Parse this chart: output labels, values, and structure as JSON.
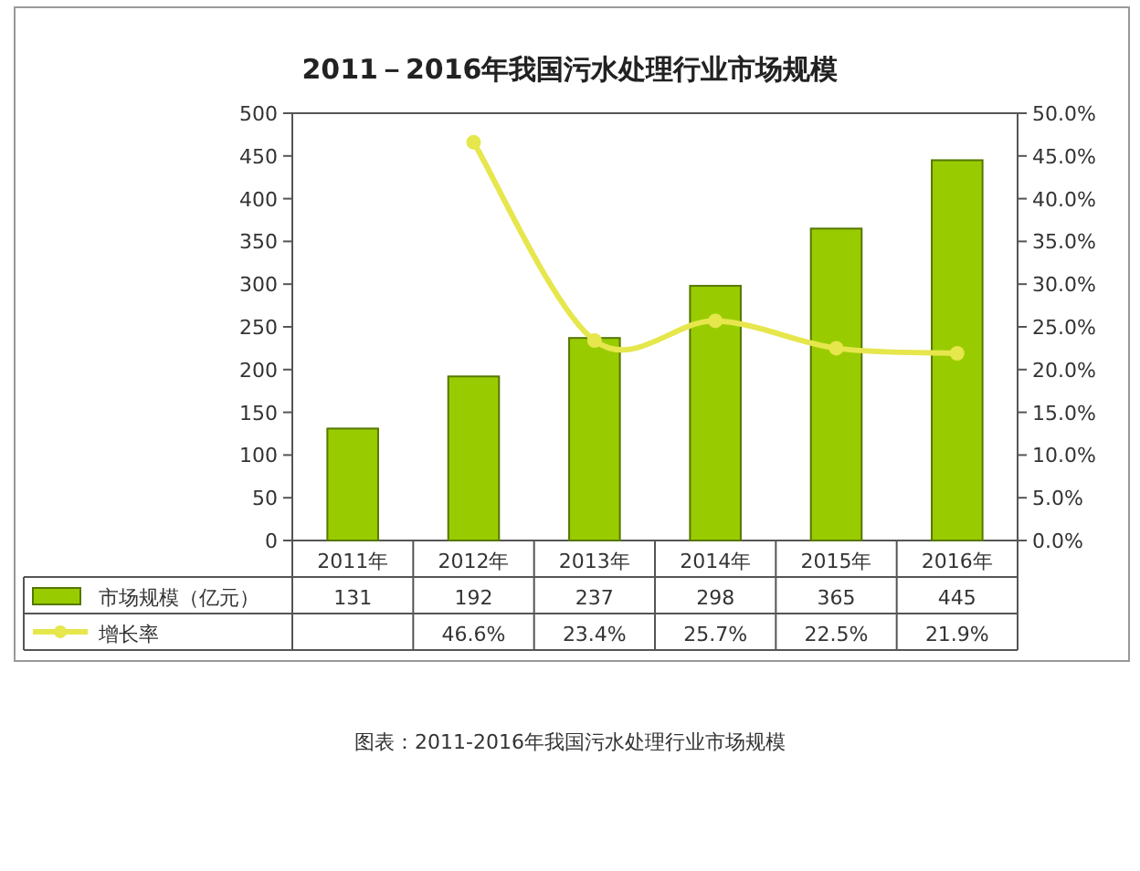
{
  "chart_data": {
    "type": "bar",
    "title": "2011－2016年我国污水处理行业市场规模",
    "categories": [
      "2011年",
      "2012年",
      "2013年",
      "2014年",
      "2015年",
      "2016年"
    ],
    "series": [
      {
        "name": "市场规模（亿元）",
        "color": "#99cc00",
        "values": [
          131,
          192,
          237,
          298,
          365,
          445
        ],
        "value_labels": [
          "131",
          "192",
          "237",
          "298",
          "365",
          "445"
        ]
      },
      {
        "name": "增长率",
        "type": "line",
        "axis": "y2",
        "color": "#e6e64d",
        "marker": "circle",
        "values": [
          null,
          46.6,
          23.4,
          25.7,
          22.5,
          21.9
        ],
        "value_labels": [
          null,
          "46.6%",
          "23.4%",
          "25.7%",
          "22.5%",
          "21.9%"
        ]
      }
    ],
    "ylim": [
      0,
      500
    ],
    "yticks": [
      0,
      50,
      100,
      150,
      200,
      250,
      300,
      350,
      400,
      450,
      500
    ],
    "y2lim": [
      0,
      50
    ],
    "y2ticks": [
      {
        "value": 0,
        "label": "0.0%"
      },
      {
        "value": 5,
        "label": "5.0%"
      },
      {
        "value": 10,
        "label": "10.0%"
      },
      {
        "value": 15,
        "label": "15.0%"
      },
      {
        "value": 20,
        "label": "20.0%"
      },
      {
        "value": 25,
        "label": "25.0%"
      },
      {
        "value": 30,
        "label": "30.0%"
      },
      {
        "value": 35,
        "label": "35.0%"
      },
      {
        "value": 40,
        "label": "40.0%"
      },
      {
        "value": 45,
        "label": "45.0%"
      },
      {
        "value": 50,
        "label": "50.0%"
      }
    ],
    "legend": "bottom",
    "annotations": [
      "图表：2011-2016年我国污水处理行业市场规模"
    ]
  }
}
